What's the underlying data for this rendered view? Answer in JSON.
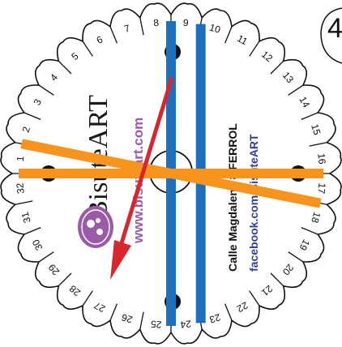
{
  "step_number": "4",
  "disk": {
    "slot_count": 32,
    "slot_labels": [
      "1",
      "2",
      "3",
      "4",
      "5",
      "6",
      "7",
      "8",
      "9",
      "10",
      "11",
      "12",
      "13",
      "14",
      "15",
      "16",
      "17",
      "18",
      "19",
      "20",
      "21",
      "22",
      "23",
      "24",
      "25",
      "26",
      "27",
      "28",
      "29",
      "30",
      "31",
      "32"
    ],
    "brand": "BisuteART",
    "website": "www.bisuteart.com",
    "address": "Calle Magdalena 8 FERROL",
    "facebook": "facebook.com/BisuteART"
  },
  "strands": [
    {
      "name": "blue-strand-a",
      "color": "#1f6fbf",
      "from_slot": "9",
      "to_slot": "25"
    },
    {
      "name": "blue-strand-b",
      "color": "#1f6fbf",
      "from_slot": "10",
      "to_slot": "24"
    },
    {
      "name": "orange-strand-a",
      "color": "#f7941e",
      "from_slot": "2",
      "to_slot": "18"
    },
    {
      "name": "orange-strand-b",
      "color": "#f7941e",
      "from_slot": "1",
      "to_slot": "17"
    }
  ],
  "arrow": {
    "color": "#d7262e",
    "direction": "toward slot 26"
  },
  "colors": {
    "disk_fill": "#ffffff",
    "outline": "#111111",
    "logo_purple": "#9b5aa8"
  }
}
